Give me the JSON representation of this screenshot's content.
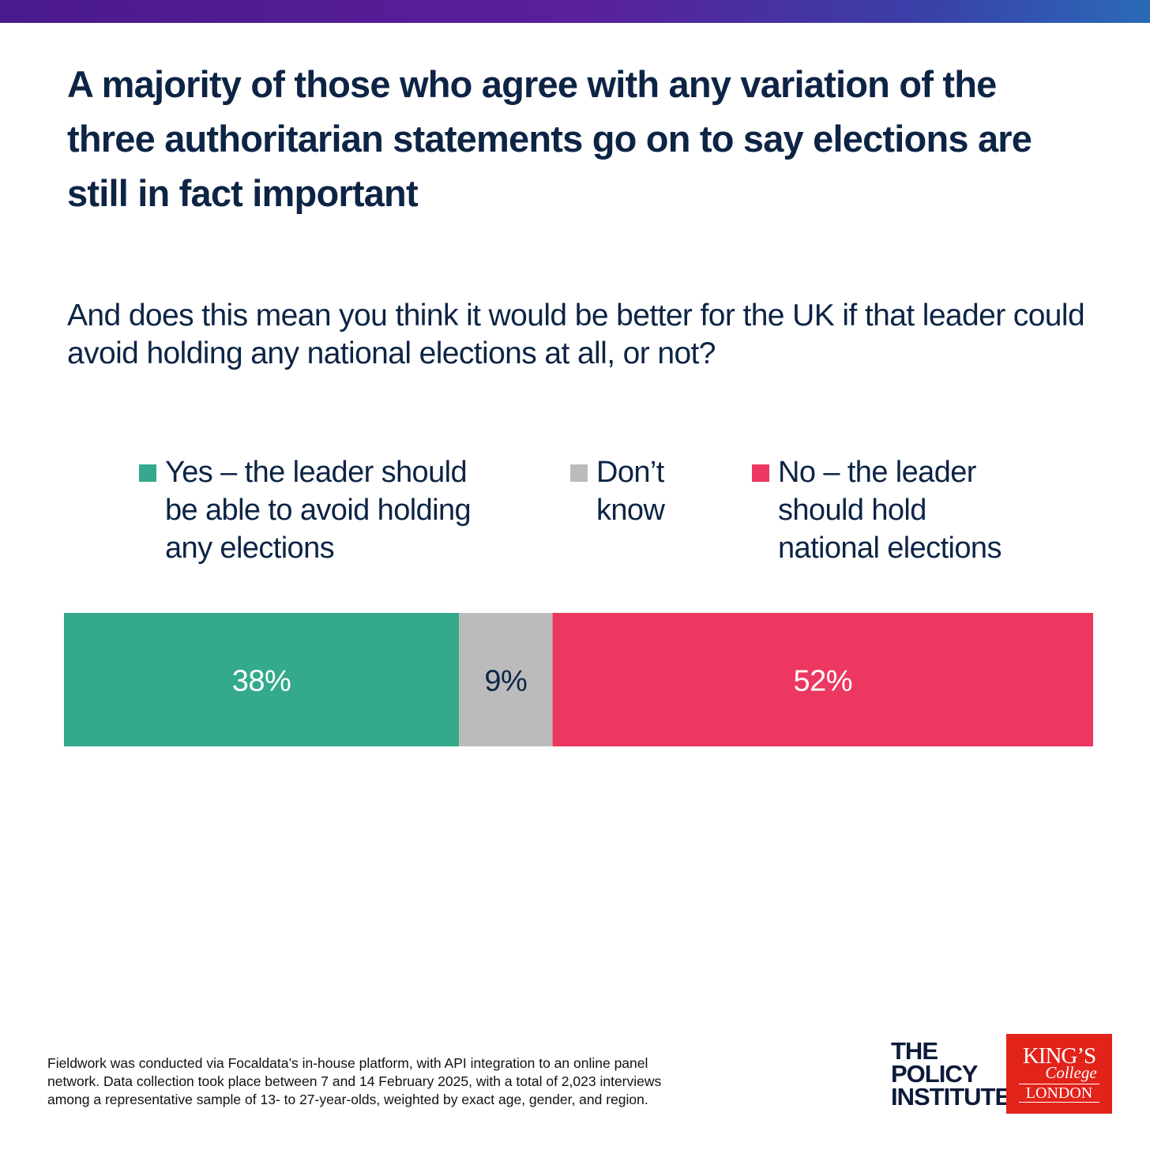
{
  "chart_data": {
    "type": "stacked-bar",
    "title": "A majority of those who agree with any variation of the three authoritarian statements go on to say elections are still in fact important",
    "subtitle": "And does this mean you think it would be better for the UK if that leader could avoid holding any national elections at all, or not?",
    "series": [
      {
        "name": "Yes – the leader should be able to avoid holding any elections",
        "color": "#34a98b",
        "label_color": "#ffffff",
        "values": [
          38
        ],
        "value_labels": [
          "38%"
        ]
      },
      {
        "name": "Don’t know",
        "color": "#bbbbbb",
        "label_color": "#0d2445",
        "values": [
          9
        ],
        "value_labels": [
          "9%"
        ]
      },
      {
        "name": "No – the leader should hold national elections",
        "color": "#ec3761",
        "label_color": "#ffffff",
        "values": [
          52
        ],
        "value_labels": [
          "52%"
        ]
      }
    ],
    "footnote": "Fieldwork was conducted via Focaldata’s in-house platform, with API integration to an online panel network. Data collection took place between 7 and 14 February 2025, with a total of 2,023 interviews among a representative sample of 13- to 27-year-olds, weighted by exact age, gender, and region."
  },
  "branding": {
    "policy_institute": [
      "THE",
      "POLICY",
      "INSTITUTE"
    ],
    "kings": [
      "KING’S",
      "College",
      "LONDON"
    ]
  }
}
